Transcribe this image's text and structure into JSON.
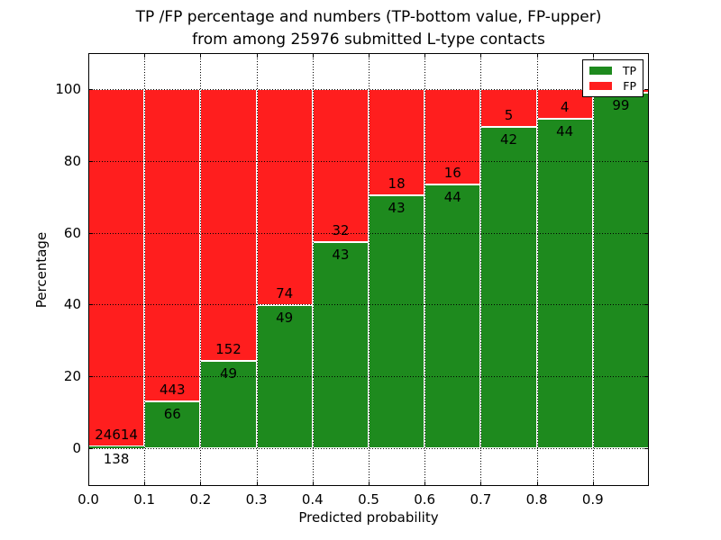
{
  "figure": {
    "title_line1": "TP /FP percentage and numbers (TP-bottom value, FP-upper)",
    "title_line2": "from among 25976 submitted L-type contacts"
  },
  "axes": {
    "xlabel": "Predicted probability",
    "ylabel": "Percentage",
    "ytick_labels": [
      "0",
      "20",
      "40",
      "60",
      "80",
      "100"
    ],
    "ytick_values": [
      0,
      20,
      40,
      60,
      80,
      100
    ],
    "xtick_labels": [
      "0.0",
      "0.1",
      "0.2",
      "0.3",
      "0.4",
      "0.5",
      "0.6",
      "0.7",
      "0.8",
      "0.9"
    ]
  },
  "legend": {
    "items": [
      {
        "label": "TP",
        "color": "#1e8a1e"
      },
      {
        "label": "FP",
        "color": "#ff1e1e"
      }
    ]
  },
  "chart_data": {
    "type": "bar",
    "stacked": true,
    "normalized": "each 0.1-wide probability bin stacks to 100%",
    "title": "TP /FP percentage and numbers (TP-bottom value, FP-upper) from among 25976 submitted L-type contacts",
    "xlabel": "Predicted probability",
    "ylabel": "Percentage",
    "xlim": [
      0.0,
      1.0
    ],
    "ylim": [
      -10.5,
      110.5
    ],
    "grid": "dotted both axes",
    "legend_position": "upper right",
    "colors": {
      "tp": "#1e8a1e",
      "fp": "#ff1e1e"
    },
    "bins": [
      {
        "range": "0.0-0.1",
        "tp_count": 138,
        "fp_count": 24614,
        "tp_pct": 0.56
      },
      {
        "range": "0.1-0.2",
        "tp_count": 66,
        "fp_count": 443,
        "tp_pct": 12.97
      },
      {
        "range": "0.2-0.3",
        "tp_count": 49,
        "fp_count": 152,
        "tp_pct": 24.38
      },
      {
        "range": "0.3-0.4",
        "tp_count": 49,
        "fp_count": 74,
        "tp_pct": 39.84
      },
      {
        "range": "0.4-0.5",
        "tp_count": 43,
        "fp_count": 32,
        "tp_pct": 57.33
      },
      {
        "range": "0.5-0.6",
        "tp_count": 43,
        "fp_count": 18,
        "tp_pct": 70.49
      },
      {
        "range": "0.6-0.7",
        "tp_count": 44,
        "fp_count": 16,
        "tp_pct": 73.33
      },
      {
        "range": "0.7-0.8",
        "tp_count": 42,
        "fp_count": 5,
        "tp_pct": 89.36
      },
      {
        "range": "0.8-0.9",
        "tp_count": 44,
        "fp_count": 4,
        "tp_pct": 91.67
      },
      {
        "range": "0.9-1.0",
        "tp_count": 99,
        "fp_count": null,
        "tp_pct": 99.0,
        "fp_label_hidden_by_legend": true
      }
    ]
  }
}
